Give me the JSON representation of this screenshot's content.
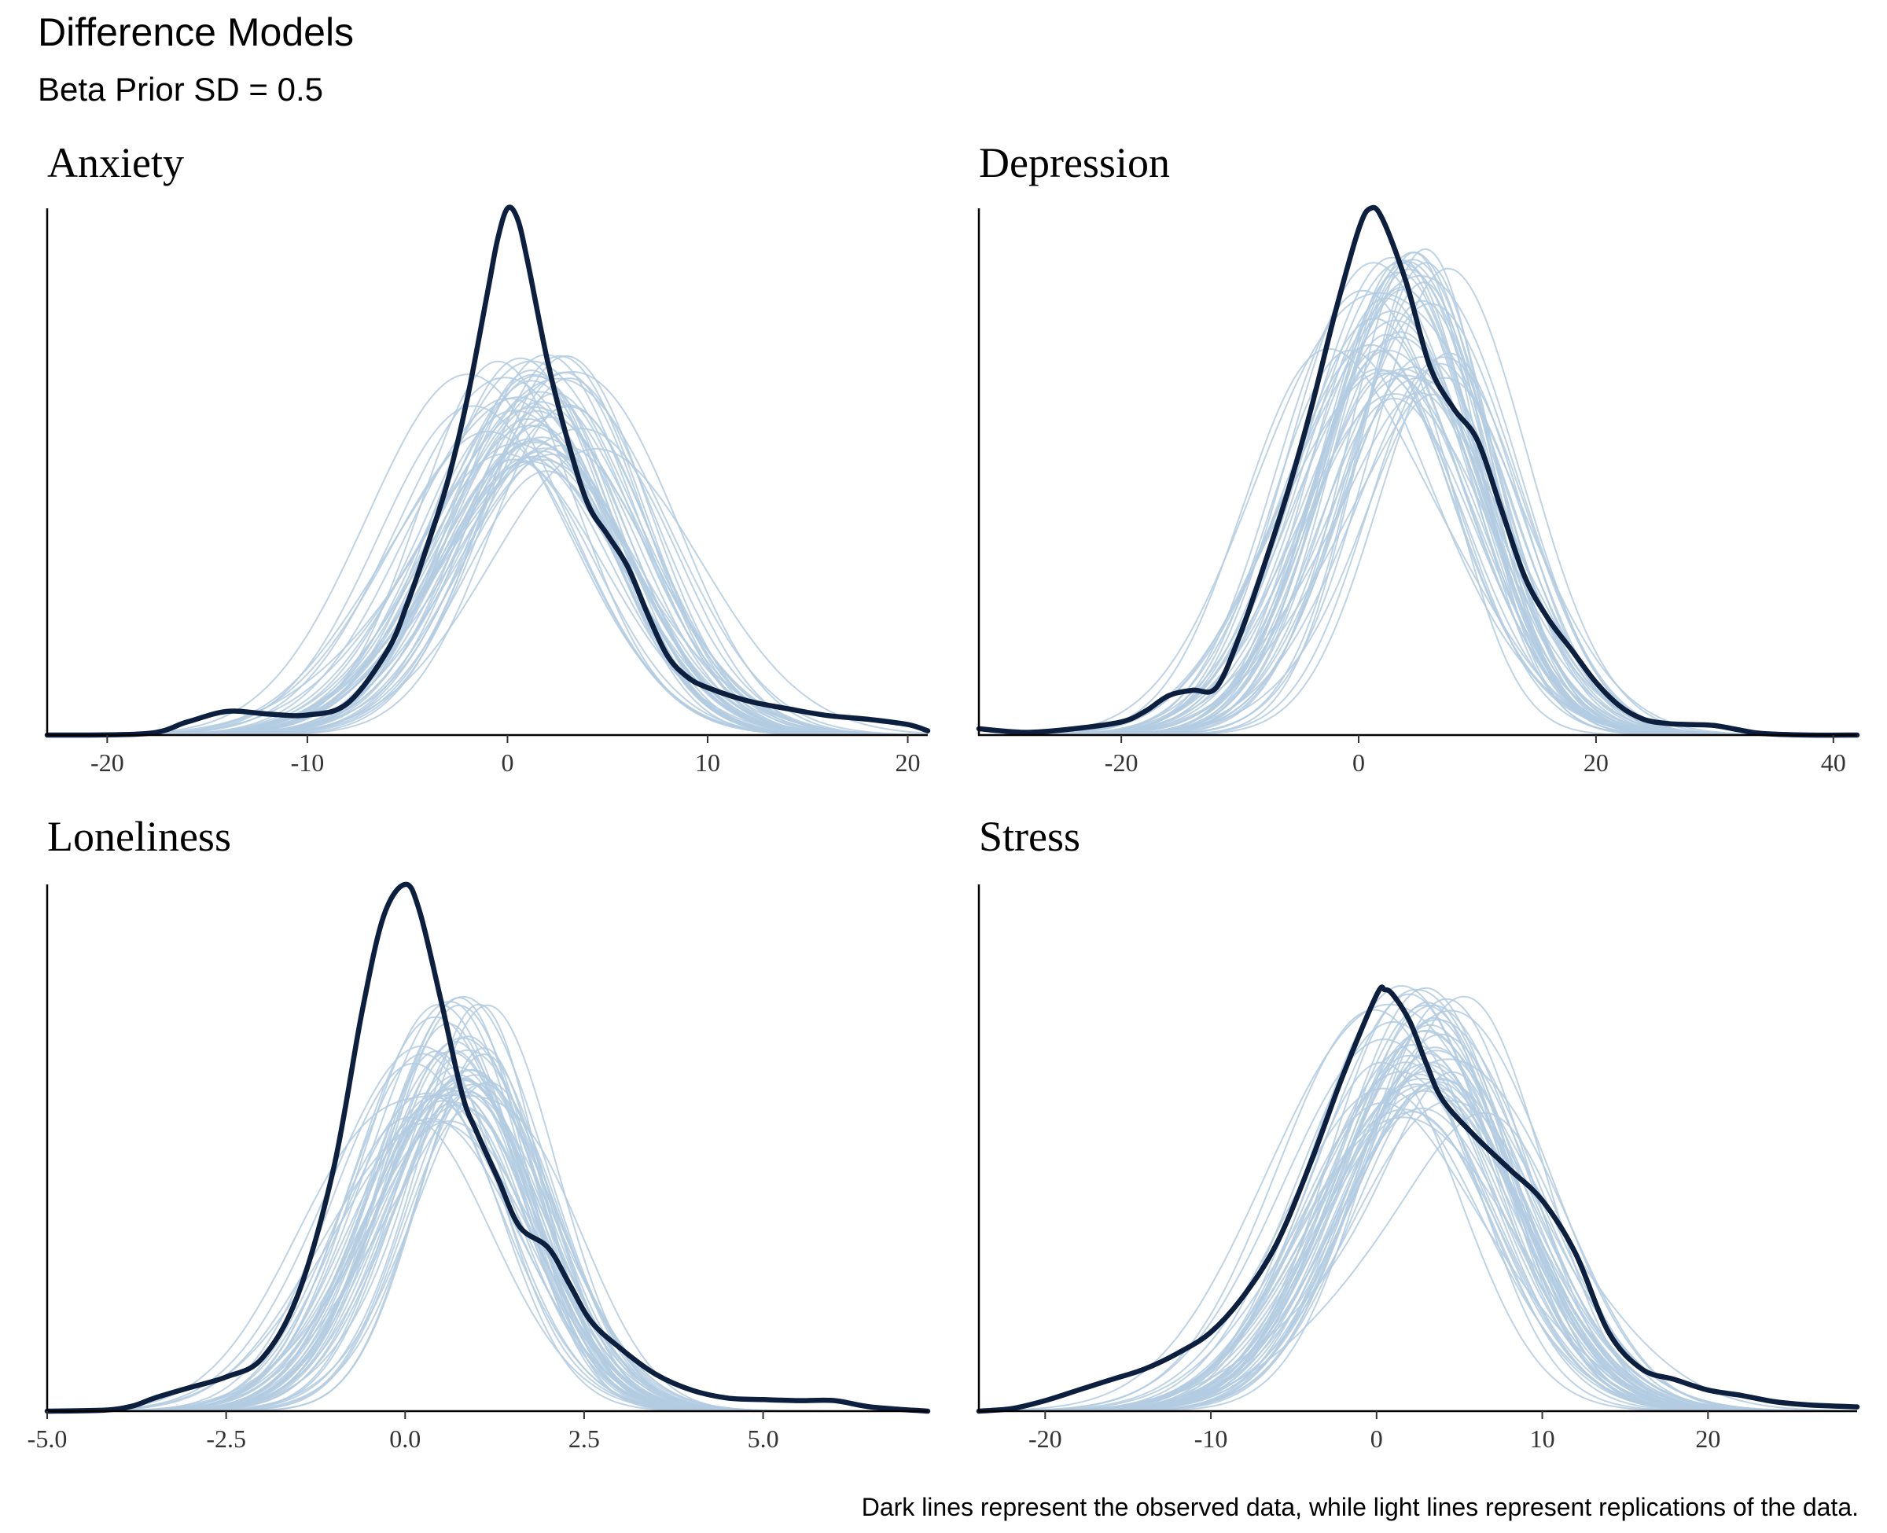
{
  "title": "Difference Models",
  "subtitle": "Beta Prior SD = 0.5",
  "caption": "Dark lines represent the observed data, while light lines represent replications of the data.",
  "colors": {
    "observed": "#0d1f3f",
    "replicated": "#b3cbe0",
    "axis": "#000000"
  },
  "chart_data": [
    {
      "type": "line",
      "title": "Anxiety",
      "xlim": [
        -23,
        21
      ],
      "ylim": [
        0,
        1
      ],
      "xticks": [
        -20,
        -10,
        0,
        10,
        20
      ],
      "xtick_labels": [
        "-20",
        "-10",
        "0",
        "10",
        "20"
      ],
      "observed": {
        "x": [
          -23,
          -18,
          -16,
          -14,
          -12,
          -10,
          -8,
          -6,
          -5,
          -4,
          -3,
          -2,
          -1,
          -0.5,
          0,
          0.5,
          1,
          2,
          3,
          4,
          5,
          6,
          7,
          8,
          9,
          10,
          12,
          14,
          16,
          18,
          20,
          21
        ],
        "y": [
          0,
          0.003,
          0.025,
          0.045,
          0.04,
          0.038,
          0.06,
          0.16,
          0.25,
          0.36,
          0.48,
          0.64,
          0.84,
          0.94,
          1.0,
          0.98,
          0.9,
          0.71,
          0.56,
          0.44,
          0.38,
          0.32,
          0.23,
          0.15,
          0.11,
          0.09,
          0.065,
          0.05,
          0.037,
          0.03,
          0.02,
          0.008
        ]
      },
      "replications": {
        "count": 50,
        "center": 1.5,
        "spread": 6.2,
        "peak": 0.61
      }
    },
    {
      "type": "line",
      "title": "Depression",
      "xlim": [
        -32,
        42
      ],
      "ylim": [
        0,
        1
      ],
      "xticks": [
        -20,
        0,
        20,
        40
      ],
      "xtick_labels": [
        "-20",
        "0",
        "20",
        "40"
      ],
      "observed": {
        "x": [
          -32,
          -28,
          -24,
          -20,
          -18,
          -16,
          -14,
          -12,
          -10,
          -8,
          -6,
          -4,
          -2,
          0,
          1,
          2,
          4,
          6,
          8,
          10,
          12,
          14,
          16,
          18,
          20,
          22,
          24,
          26,
          28,
          30,
          32,
          34,
          38,
          42
        ],
        "y": [
          0.012,
          0.005,
          0.012,
          0.025,
          0.045,
          0.075,
          0.085,
          0.09,
          0.19,
          0.32,
          0.46,
          0.62,
          0.8,
          0.96,
          1.0,
          0.98,
          0.86,
          0.7,
          0.62,
          0.56,
          0.43,
          0.3,
          0.22,
          0.16,
          0.1,
          0.055,
          0.03,
          0.022,
          0.02,
          0.018,
          0.01,
          0.003,
          0.0,
          0.0
        ]
      },
      "replications": {
        "count": 50,
        "center": 4,
        "spread": 9.2,
        "peak": 0.77
      }
    },
    {
      "type": "line",
      "title": "Loneliness",
      "xlim": [
        -5.0,
        7.3
      ],
      "ylim": [
        0,
        1
      ],
      "xticks": [
        -5.0,
        -2.5,
        0.0,
        2.5,
        5.0
      ],
      "xtick_labels": [
        "-5.0",
        "-2.5",
        "0.0",
        "2.5",
        "5.0"
      ],
      "observed": {
        "x": [
          -5.0,
          -4.2,
          -3.8,
          -3.5,
          -3.0,
          -2.5,
          -2.0,
          -1.5,
          -1.0,
          -0.6,
          -0.3,
          0.0,
          0.2,
          0.5,
          0.8,
          1.0,
          1.3,
          1.6,
          2.0,
          2.3,
          2.6,
          3.0,
          3.5,
          4.0,
          4.5,
          5.0,
          5.5,
          6.0,
          6.5,
          7.3
        ],
        "y": [
          0.0,
          0.002,
          0.01,
          0.025,
          0.045,
          0.065,
          0.1,
          0.22,
          0.46,
          0.76,
          0.94,
          1.0,
          0.95,
          0.78,
          0.6,
          0.53,
          0.44,
          0.35,
          0.31,
          0.24,
          0.17,
          0.12,
          0.07,
          0.04,
          0.025,
          0.022,
          0.02,
          0.02,
          0.008,
          0.0
        ]
      },
      "replications": {
        "count": 50,
        "center": 0.7,
        "spread": 1.45,
        "peak": 0.67
      }
    },
    {
      "type": "line",
      "title": "Stress",
      "xlim": [
        -24,
        29
      ],
      "ylim": [
        0,
        1
      ],
      "xticks": [
        -20,
        -10,
        0,
        10,
        20
      ],
      "xtick_labels": [
        "-20",
        "-10",
        "0",
        "10",
        "20"
      ],
      "observed": {
        "x": [
          -24,
          -22,
          -20,
          -18,
          -16,
          -14,
          -12,
          -10,
          -8,
          -6,
          -4,
          -2,
          0,
          0.5,
          1,
          2,
          3,
          4,
          6,
          8,
          10,
          12,
          14,
          16,
          18,
          20,
          22,
          24,
          26,
          29
        ],
        "y": [
          0.0,
          0.005,
          0.02,
          0.04,
          0.06,
          0.08,
          0.11,
          0.15,
          0.22,
          0.32,
          0.47,
          0.64,
          0.79,
          0.8,
          0.79,
          0.74,
          0.66,
          0.59,
          0.52,
          0.46,
          0.4,
          0.3,
          0.15,
          0.08,
          0.06,
          0.04,
          0.03,
          0.018,
          0.012,
          0.008
        ]
      },
      "replications": {
        "count": 50,
        "center": 3,
        "spread": 7.4,
        "peak": 0.68
      }
    }
  ]
}
